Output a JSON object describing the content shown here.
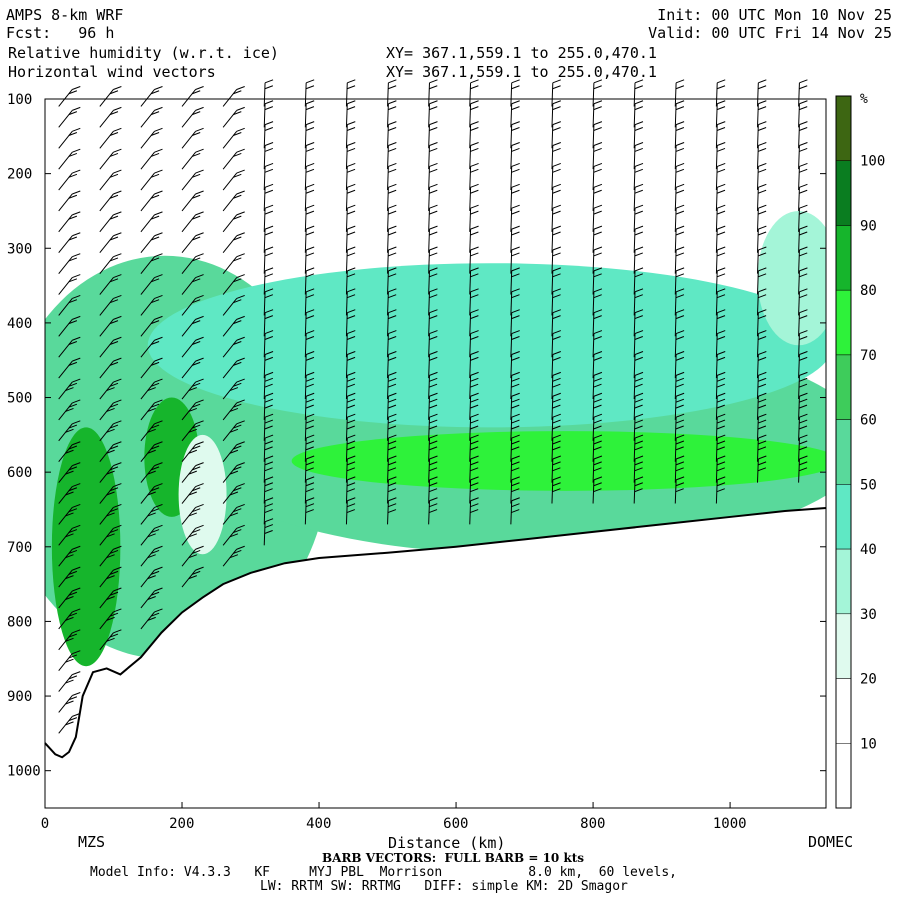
{
  "header": {
    "model": "AMPS 8-km WRF",
    "forecast": "Fcst:   96 h",
    "field1": "Relative humidity (w.r.t. ice)",
    "field2": "Horizontal wind vectors",
    "init": "Init: 00 UTC Mon 10 Nov 25",
    "valid": "Valid: 00 UTC Fri 14 Nov 25",
    "xy1": "XY= 367.1,559.1 to 255.0,470.1",
    "xy2": "XY= 367.1,559.1 to 255.0,470.1"
  },
  "footer": {
    "left_station": "MZS",
    "right_station": "DOMEC",
    "barb_note": "BARB VECTORS:  FULL BARB = 10 kts",
    "model_info": "Model Info: V4.3.3   KF     MYJ PBL  Morrison           8.0 km,  60 levels,",
    "physics": "LW: RRTM SW: RRTMG   DIFF: simple KM: 2D Smagor"
  },
  "chart_data": {
    "type": "heatmap",
    "title": "Relative humidity (w.r.t. ice)",
    "xlabel": "Distance (km)",
    "ylabel": "",
    "xlim": [
      0,
      1140
    ],
    "ylim": [
      1050,
      100
    ],
    "x_ticks": [
      0,
      200,
      400,
      600,
      800,
      1000
    ],
    "y_ticks": [
      100,
      200,
      300,
      400,
      500,
      600,
      700,
      800,
      900,
      1000
    ],
    "colorbar": {
      "unit": "%",
      "levels": [
        10,
        20,
        30,
        40,
        50,
        60,
        70,
        80,
        90,
        100
      ],
      "colors": [
        "#ffffff",
        "#ffffff",
        "#dffaee",
        "#a4f5d8",
        "#5fe8c4",
        "#59d99b",
        "#3ecc5b",
        "#2ef23a",
        "#16b52c",
        "#0a7d20",
        "#3d6612"
      ]
    },
    "terrain_surface_hpa": [
      [
        0,
        963
      ],
      [
        15,
        978
      ],
      [
        25,
        982
      ],
      [
        35,
        975
      ],
      [
        45,
        955
      ],
      [
        55,
        900
      ],
      [
        70,
        868
      ],
      [
        90,
        863
      ],
      [
        110,
        871
      ],
      [
        140,
        848
      ],
      [
        170,
        815
      ],
      [
        200,
        788
      ],
      [
        230,
        768
      ],
      [
        260,
        750
      ],
      [
        300,
        735
      ],
      [
        350,
        722
      ],
      [
        400,
        715
      ],
      [
        500,
        708
      ],
      [
        600,
        700
      ],
      [
        700,
        690
      ],
      [
        800,
        680
      ],
      [
        900,
        670
      ],
      [
        1000,
        660
      ],
      [
        1080,
        652
      ],
      [
        1140,
        648
      ]
    ],
    "rh_regions": [
      {
        "cx": 175,
        "cy": 580,
        "rx": 240,
        "ry": 270,
        "rh": 55
      },
      {
        "cx": 700,
        "cy": 560,
        "rx": 500,
        "ry": 150,
        "rh": 55
      },
      {
        "cx": 650,
        "cy": 430,
        "rx": 500,
        "ry": 110,
        "rh": 40
      },
      {
        "cx": 60,
        "cy": 700,
        "rx": 50,
        "ry": 160,
        "rh": 80
      },
      {
        "cx": 185,
        "cy": 580,
        "rx": 40,
        "ry": 80,
        "rh": 85
      },
      {
        "cx": 760,
        "cy": 585,
        "rx": 400,
        "ry": 40,
        "rh": 72
      },
      {
        "cx": 230,
        "cy": 630,
        "rx": 35,
        "ry": 80,
        "rh": 20
      },
      {
        "cx": 1100,
        "cy": 340,
        "rx": 60,
        "ry": 90,
        "rh": 38
      }
    ],
    "wind_columns_km": [
      20,
      80,
      140,
      200,
      260,
      320,
      380,
      440,
      500,
      560,
      620,
      680,
      740,
      800,
      860,
      920,
      980,
      1040,
      1100
    ],
    "barb_note": "FULL BARB = 10 kts"
  }
}
